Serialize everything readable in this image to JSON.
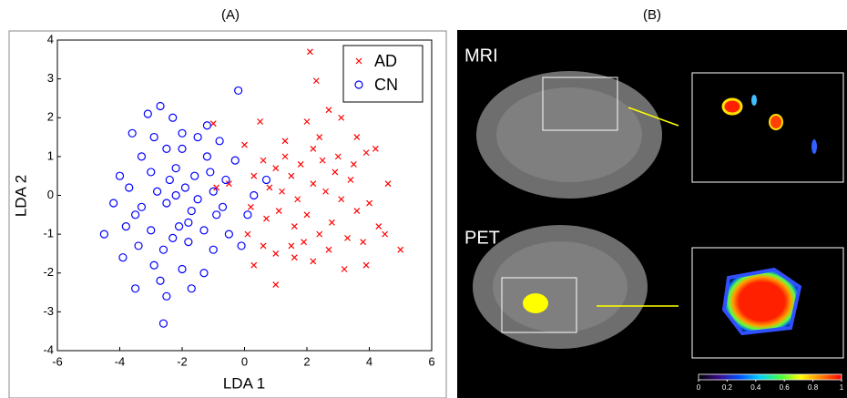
{
  "chart_data": [
    {
      "type": "scatter",
      "title": "(A)",
      "xlabel": "LDA 1",
      "ylabel": "LDA 2",
      "xlim": [
        -6,
        6
      ],
      "ylim": [
        -4,
        4
      ],
      "xticks": [
        -6,
        -4,
        -2,
        0,
        2,
        4,
        6
      ],
      "yticks": [
        -4,
        -3,
        -2,
        -1,
        0,
        1,
        2,
        3,
        4
      ],
      "legend": "upper right",
      "series": [
        {
          "name": "AD",
          "color": "#ff0000",
          "marker": "x",
          "x": [
            2.1,
            2.3,
            2.0,
            2.2,
            1.3,
            -1.0,
            0.5,
            2.7,
            3.1,
            3.6,
            0.6,
            1.0,
            1.5,
            1.8,
            2.5,
            3.0,
            3.5,
            3.9,
            4.2,
            4.6,
            0.3,
            0.8,
            1.2,
            1.7,
            2.2,
            2.6,
            3.1,
            3.4,
            4.0,
            4.3,
            4.5,
            5.0,
            -0.9,
            -0.5,
            0.2,
            0.7,
            1.1,
            1.6,
            2.0,
            2.4,
            2.8,
            3.3,
            3.8,
            0.1,
            0.6,
            1.0,
            1.6,
            2.2,
            2.7,
            3.2,
            3.9,
            0.3,
            1.0,
            1.5,
            2.9,
            0.0,
            1.9,
            3.6,
            2.4,
            1.3
          ],
          "y": [
            3.7,
            2.95,
            1.9,
            1.2,
            1.4,
            1.85,
            1.9,
            2.2,
            2.0,
            1.5,
            0.9,
            0.7,
            0.5,
            0.8,
            0.9,
            1.0,
            0.8,
            1.1,
            1.2,
            0.3,
            0.5,
            0.2,
            0.1,
            -0.1,
            0.3,
            0.1,
            -0.1,
            0.4,
            -0.2,
            -0.8,
            -1.0,
            -1.4,
            0.2,
            0.3,
            -0.3,
            -0.6,
            -0.4,
            -0.8,
            -0.5,
            -1.0,
            -0.7,
            -1.1,
            -1.2,
            -1.0,
            -1.3,
            -1.5,
            -1.6,
            -1.7,
            -1.4,
            -1.9,
            -1.8,
            -1.8,
            -2.3,
            -1.3,
            0.6,
            1.3,
            -1.2,
            -0.4,
            1.5,
            1.0
          ]
        },
        {
          "name": "CN",
          "color": "#0000ff",
          "marker": "o",
          "x": [
            -0.2,
            -2.7,
            -2.3,
            -3.1,
            -3.6,
            -2.0,
            -1.5,
            -0.8,
            -2.5,
            -3.3,
            -1.2,
            -0.3,
            -4.0,
            -3.0,
            -2.2,
            -1.6,
            -0.6,
            0.7,
            -3.7,
            -2.8,
            -1.9,
            -1.0,
            0.3,
            -4.2,
            -3.3,
            -2.5,
            -1.7,
            -0.9,
            0.1,
            -3.8,
            -3.0,
            -2.1,
            -1.3,
            -0.5,
            -4.5,
            -3.4,
            -2.6,
            -1.8,
            -1.0,
            -3.9,
            -2.9,
            -2.0,
            -1.3,
            -2.7,
            -1.7,
            -3.5,
            -2.5,
            -2.6,
            -2.2,
            -1.5,
            -2.4,
            -1.1,
            -3.5,
            -0.7,
            -2.0,
            -2.9,
            -1.8,
            -2.3,
            -1.2,
            -0.1
          ],
          "y": [
            2.7,
            2.3,
            2.0,
            2.1,
            1.6,
            1.6,
            1.5,
            1.4,
            1.2,
            1.0,
            1.0,
            0.9,
            0.5,
            0.6,
            0.7,
            0.5,
            0.4,
            0.4,
            0.2,
            0.1,
            0.2,
            0.1,
            0.0,
            -0.2,
            -0.3,
            -0.2,
            -0.4,
            -0.5,
            -0.5,
            -0.8,
            -0.9,
            -0.8,
            -0.9,
            -1.0,
            -1.0,
            -1.3,
            -1.4,
            -1.2,
            -1.4,
            -1.6,
            -1.8,
            -1.9,
            -2.0,
            -2.2,
            -2.4,
            -2.4,
            -2.6,
            -3.3,
            0.0,
            -0.1,
            0.4,
            0.6,
            -0.5,
            -0.3,
            1.2,
            1.5,
            -0.7,
            -1.1,
            1.8,
            -1.3
          ]
        }
      ]
    },
    {
      "type": "colorbar",
      "title": "(B)",
      "image_labels": [
        "MRI",
        "PET"
      ],
      "xlim": [
        0,
        1
      ],
      "xticks": [
        0,
        0.2,
        0.4,
        0.6,
        0.8,
        1
      ],
      "colors": [
        "#000000",
        "#3b0a8a",
        "#0050ff",
        "#00d0ff",
        "#40ff40",
        "#ffff00",
        "#ff8000",
        "#ff0000"
      ]
    }
  ]
}
